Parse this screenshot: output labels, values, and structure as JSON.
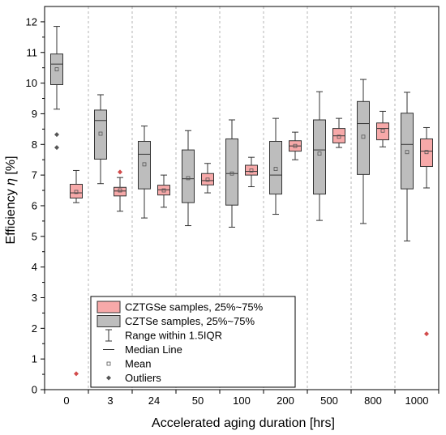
{
  "chart_data": {
    "type": "box",
    "xlabel": "Accelerated aging duration [hrs]",
    "ylabel_prefix": "Efficiency ",
    "ylabel_symbol": "η",
    "ylabel_suffix": " [%]",
    "ylim": [
      0,
      12.5
    ],
    "yticks": [
      0,
      1,
      2,
      3,
      4,
      5,
      6,
      7,
      8,
      9,
      10,
      11,
      12
    ],
    "categories": [
      "0",
      "3",
      "24",
      "50",
      "100",
      "200",
      "500",
      "800",
      "1000"
    ],
    "grid": "vertical dashed between categories",
    "series": [
      {
        "name": "CZTSe samples, 25%~75%",
        "color": "#bdbdbd",
        "boxes": [
          {
            "category": "0",
            "q1": 9.95,
            "median": 10.62,
            "q3": 10.95,
            "mean": 10.45,
            "whisker_low": 9.15,
            "whisker_high": 11.85,
            "outliers": [
              8.32,
              7.9
            ]
          },
          {
            "category": "3",
            "q1": 7.52,
            "median": 8.78,
            "q3": 9.12,
            "mean": 8.35,
            "whisker_low": 6.72,
            "whisker_high": 9.62,
            "outliers": []
          },
          {
            "category": "24",
            "q1": 6.55,
            "median": 7.68,
            "q3": 8.1,
            "mean": 7.35,
            "whisker_low": 5.6,
            "whisker_high": 8.6,
            "outliers": []
          },
          {
            "category": "50",
            "q1": 6.1,
            "median": 6.88,
            "q3": 7.82,
            "mean": 6.9,
            "whisker_low": 5.35,
            "whisker_high": 8.45,
            "outliers": []
          },
          {
            "category": "100",
            "q1": 6.02,
            "median": 7.05,
            "q3": 8.18,
            "mean": 7.05,
            "whisker_low": 5.3,
            "whisker_high": 8.8,
            "outliers": []
          },
          {
            "category": "200",
            "q1": 6.38,
            "median": 7.0,
            "q3": 8.1,
            "mean": 7.2,
            "whisker_low": 5.72,
            "whisker_high": 8.85,
            "outliers": []
          },
          {
            "category": "500",
            "q1": 6.38,
            "median": 7.82,
            "q3": 8.8,
            "mean": 7.7,
            "whisker_low": 5.52,
            "whisker_high": 9.72,
            "outliers": []
          },
          {
            "category": "800",
            "q1": 7.02,
            "median": 8.68,
            "q3": 9.4,
            "mean": 8.25,
            "whisker_low": 5.42,
            "whisker_high": 10.12,
            "outliers": []
          },
          {
            "category": "1000",
            "q1": 6.55,
            "median": 8.0,
            "q3": 9.02,
            "mean": 7.75,
            "whisker_low": 4.85,
            "whisker_high": 9.7,
            "outliers": []
          }
        ]
      },
      {
        "name": "CZTGSe samples, 25%~75%",
        "color": "#f7a9a9",
        "boxes": [
          {
            "category": "0",
            "q1": 6.25,
            "median": 6.42,
            "q3": 6.7,
            "mean": 6.45,
            "whisker_low": 6.1,
            "whisker_high": 7.15,
            "outliers": [
              0.52
            ]
          },
          {
            "category": "3",
            "q1": 6.32,
            "median": 6.48,
            "q3": 6.6,
            "mean": 6.5,
            "whisker_low": 5.82,
            "whisker_high": 6.92,
            "outliers": [
              7.1
            ]
          },
          {
            "category": "24",
            "q1": 6.35,
            "median": 6.52,
            "q3": 6.67,
            "mean": 6.5,
            "whisker_low": 5.95,
            "whisker_high": 7.0,
            "outliers": []
          },
          {
            "category": "50",
            "q1": 6.68,
            "median": 6.82,
            "q3": 7.05,
            "mean": 6.85,
            "whisker_low": 6.42,
            "whisker_high": 7.38,
            "outliers": []
          },
          {
            "category": "100",
            "q1": 7.0,
            "median": 7.12,
            "q3": 7.32,
            "mean": 7.15,
            "whisker_low": 6.62,
            "whisker_high": 7.58,
            "outliers": []
          },
          {
            "category": "200",
            "q1": 7.78,
            "median": 7.95,
            "q3": 8.12,
            "mean": 7.95,
            "whisker_low": 7.5,
            "whisker_high": 8.4,
            "outliers": []
          },
          {
            "category": "500",
            "q1": 8.05,
            "median": 8.28,
            "q3": 8.52,
            "mean": 8.25,
            "whisker_low": 7.9,
            "whisker_high": 8.85,
            "outliers": []
          },
          {
            "category": "800",
            "q1": 8.15,
            "median": 8.52,
            "q3": 8.7,
            "mean": 8.45,
            "whisker_low": 7.92,
            "whisker_high": 9.08,
            "outliers": []
          },
          {
            "category": "1000",
            "q1": 7.28,
            "median": 7.78,
            "q3": 8.18,
            "mean": 7.75,
            "whisker_low": 6.58,
            "whisker_high": 8.55,
            "outliers": [
              1.82
            ]
          }
        ]
      }
    ],
    "legend": {
      "placement": "lower-left",
      "items": [
        {
          "kind": "box",
          "color": "#f7a9a9",
          "label": "CZTGSe samples, 25%~75%"
        },
        {
          "kind": "box",
          "color": "#bdbdbd",
          "label": "CZTSe samples, 25%~75%"
        },
        {
          "kind": "whisker",
          "label": "Range within 1.5IQR"
        },
        {
          "kind": "median",
          "label": "Median Line"
        },
        {
          "kind": "mean",
          "label": "Mean"
        },
        {
          "kind": "outlier",
          "label": "Outliers"
        }
      ]
    },
    "outlier_colors": {
      "CZTSe": "#555555",
      "CZTGSe": "#d24b4b"
    }
  }
}
